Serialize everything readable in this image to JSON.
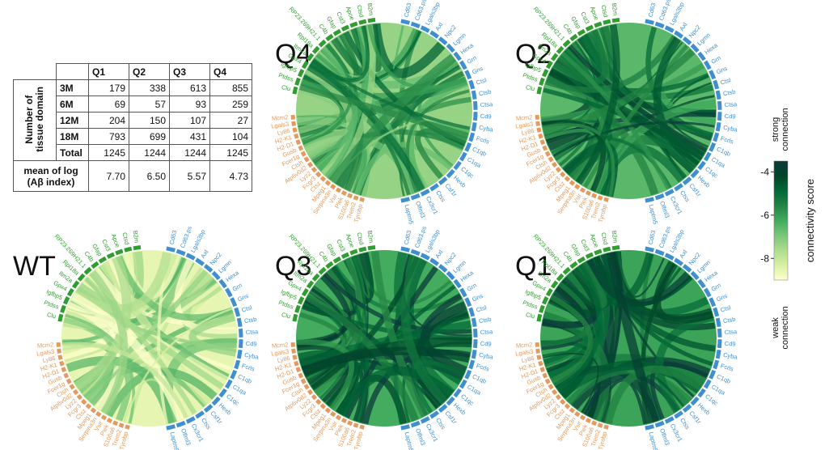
{
  "table": {
    "columns": [
      "Q1",
      "Q2",
      "Q3",
      "Q4"
    ],
    "group_label": "Number of tissue domain",
    "group_lines": [
      "Number of",
      "tissue domain"
    ],
    "rows": [
      {
        "label": "3M",
        "values": [
          "179",
          "338",
          "613",
          "855"
        ]
      },
      {
        "label": "6M",
        "values": [
          "69",
          "57",
          "93",
          "259"
        ]
      },
      {
        "label": "12M",
        "values": [
          "204",
          "150",
          "107",
          "27"
        ]
      },
      {
        "label": "18M",
        "values": [
          "793",
          "699",
          "431",
          "104"
        ]
      },
      {
        "label": "Total",
        "values": [
          "1245",
          "1244",
          "1244",
          "1245"
        ]
      }
    ],
    "mean_label_lines": [
      "mean of log",
      "(Aβ index)"
    ],
    "mean_values": [
      "7.70",
      "6.50",
      "5.57",
      "4.73"
    ]
  },
  "colorbar": {
    "title": "connectivity score",
    "ticks": [
      "-4",
      "-6",
      "-8"
    ],
    "tick_values": [
      -4,
      -6,
      -8
    ],
    "range": [
      -9,
      -3.5
    ],
    "top_label": [
      "strong",
      "connection"
    ],
    "bottom_label": [
      "weak",
      "connection"
    ],
    "colors": [
      "#ffffcc",
      "#d9f0a3",
      "#addd8e",
      "#78c679",
      "#41ab5d",
      "#238443",
      "#006837",
      "#004529",
      "#0b3b3b"
    ]
  },
  "colors": {
    "green_label": "#2f9e2f",
    "blue_label": "#3f8fd0",
    "orange_label": "#e39a5c"
  },
  "chart_data": {
    "type": "chord",
    "genes": {
      "green": [
        "Clu",
        "Ptdss",
        "Igfbp5",
        "Gpx4",
        "Itm2a",
        "Rpl18a",
        "RP23.269H21.1",
        "C4b",
        "Gfap",
        "Cst3",
        "Apoe",
        "Ctsd",
        "B2m"
      ],
      "blue": [
        "Cd63",
        "Cd63.ps",
        "Lgals3bp",
        "Axl",
        "Npc2",
        "Lgmn",
        "Hexa",
        "Grn",
        "Gns",
        "Ctsl",
        "Ctsb",
        "Ctsa",
        "Cd9",
        "Cyba",
        "Fcrls",
        "C1qb",
        "C1qa",
        "C1qc",
        "Hexb",
        "Csf1r",
        "Ctss",
        "Cx3cr1",
        "Olfml3",
        "Laptm5"
      ],
      "orange": [
        "Tyrobp",
        "Trem2",
        "S100a6",
        "Plek",
        "Vsir",
        "Serpina3n",
        "Mpeg1",
        "Ctsz",
        "Fcgr3",
        "Lyz2",
        "Atp6v0d2",
        "Ctsh",
        "Fcer1g",
        "Gusb",
        "H2-D1",
        "H2-K1",
        "Ly86",
        "Lgals3",
        "Mcm2"
      ]
    },
    "panels": [
      {
        "label": "Q4",
        "density": 0.55
      },
      {
        "label": "Q2",
        "density": 0.8
      },
      {
        "label": "WT",
        "density": 0.15
      },
      {
        "label": "Q3",
        "density": 0.9
      },
      {
        "label": "Q1",
        "density": 0.95
      }
    ]
  }
}
